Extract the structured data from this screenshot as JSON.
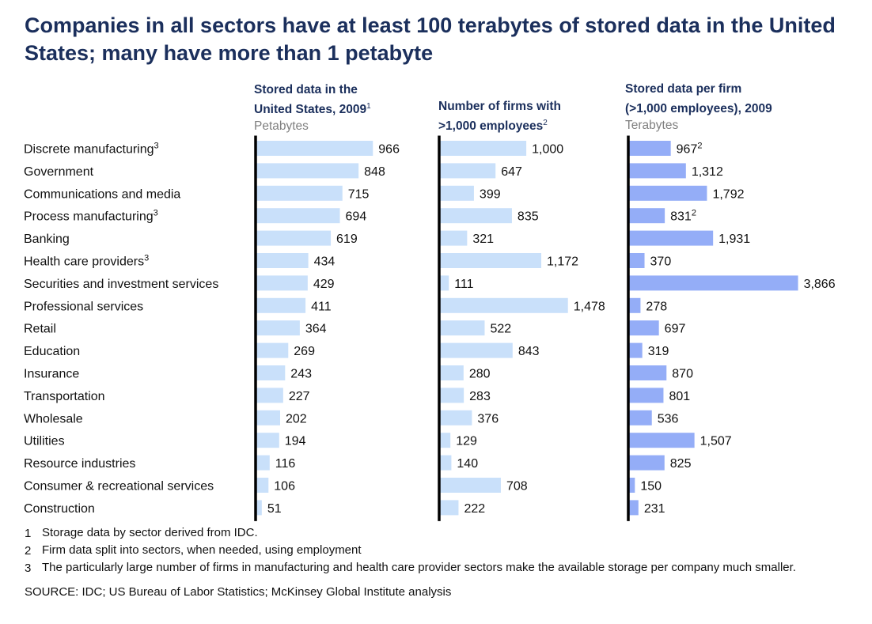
{
  "title": "Companies in all sectors have at least 100 terabytes of stored data in the United States; many have more than 1 petabyte",
  "columns": [
    {
      "line1": "Stored data in the",
      "line2": "United States, 2009",
      "sup": "1",
      "unit": "Petabytes"
    },
    {
      "line1": "Number of firms with",
      "line2": ">1,000 employees",
      "sup": "2",
      "unit": ""
    },
    {
      "line1": "Stored data per firm",
      "line2": "(>1,000 employees), 2009",
      "sup": "",
      "unit": "Terabytes"
    }
  ],
  "footnotes": [
    {
      "num": "1",
      "text": "Storage data by sector derived from IDC."
    },
    {
      "num": "2",
      "text": "Firm data split into sectors, when needed, using employment"
    },
    {
      "num": "3",
      "text": "The particularly large number of firms in manufacturing and health care provider sectors make the available storage per company much smaller."
    }
  ],
  "source": "SOURCE: IDC; US Bureau of Labor Statistics; McKinsey Global Institute analysis",
  "colors": {
    "light_bar": "#c9e0fa",
    "dark_bar": "#94adf7",
    "axis": "#000000",
    "title": "#1b2f5c"
  },
  "chart_data": {
    "type": "bar",
    "orientation": "horizontal",
    "categories": [
      "Discrete manufacturing",
      "Government",
      "Communications and media",
      "Process manufacturing",
      "Banking",
      "Health care providers",
      "Securities and investment services",
      "Professional services",
      "Retail",
      "Education",
      "Insurance",
      "Transportation",
      "Wholesale",
      "Utilities",
      "Resource industries",
      "Consumer & recreational services",
      "Construction"
    ],
    "category_superscripts": [
      "3",
      "",
      "",
      "3",
      "",
      "3",
      "",
      "",
      "",
      "",
      "",
      "",
      "",
      "",
      "",
      "",
      ""
    ],
    "series": [
      {
        "name": "Stored data in the United States, 2009 (Petabytes)",
        "values": [
          966,
          848,
          715,
          694,
          619,
          434,
          429,
          411,
          364,
          269,
          243,
          227,
          202,
          194,
          116,
          106,
          51
        ],
        "labels": [
          "966",
          "848",
          "715",
          "694",
          "619",
          "434",
          "429",
          "411",
          "364",
          "269",
          "243",
          "227",
          "202",
          "194",
          "116",
          "106",
          "51"
        ],
        "label_superscripts": [
          "",
          "",
          "",
          "",
          "",
          "",
          "",
          "",
          "",
          "",
          "",
          "",
          "",
          "",
          "",
          "",
          ""
        ],
        "color": "#c9e0fa"
      },
      {
        "name": "Number of firms with >1,000 employees",
        "values": [
          1000,
          647,
          399,
          835,
          321,
          1172,
          111,
          1478,
          522,
          843,
          280,
          283,
          376,
          129,
          140,
          708,
          222
        ],
        "labels": [
          "1,000",
          "647",
          "399",
          "835",
          "321",
          "1,172",
          "111",
          "1,478",
          "522",
          "843",
          "280",
          "283",
          "376",
          "129",
          "140",
          "708",
          "222"
        ],
        "label_superscripts": [
          "",
          "",
          "",
          "",
          "",
          "",
          "",
          "",
          "",
          "",
          "",
          "",
          "",
          "",
          "",
          "",
          ""
        ],
        "color": "#c9e0fa"
      },
      {
        "name": "Stored data per firm (>1,000 employees), 2009 (Terabytes)",
        "values": [
          967,
          1312,
          1792,
          831,
          1931,
          370,
          3866,
          278,
          697,
          319,
          870,
          801,
          536,
          1507,
          825,
          150,
          231
        ],
        "labels": [
          "967",
          "1,312",
          "1,792",
          "831",
          "1,931",
          "370",
          "3,866",
          "278",
          "697",
          "319",
          "870",
          "801",
          "536",
          "1,507",
          "825",
          "150",
          "231"
        ],
        "label_superscripts": [
          "2",
          "",
          "",
          "2",
          "",
          "",
          "",
          "",
          "",
          "",
          "",
          "",
          "",
          "",
          "",
          "",
          ""
        ],
        "color": "#94adf7"
      }
    ]
  }
}
